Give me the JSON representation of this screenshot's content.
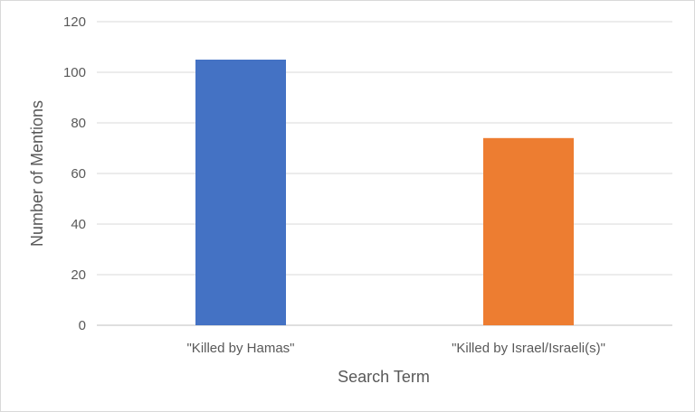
{
  "chart_data": {
    "type": "bar",
    "categories": [
      "\"Killed by Hamas\"",
      "\"Killed by Israel/Israeli(s)\""
    ],
    "values": [
      105,
      74
    ],
    "colors": [
      "#4472C4",
      "#ED7D31"
    ],
    "xlabel": "Search Term",
    "ylabel": "Number of Mentions",
    "ylim": [
      0,
      120
    ],
    "yticks": [
      0,
      20,
      40,
      60,
      80,
      100,
      120
    ],
    "grid": true,
    "legend": "none"
  }
}
